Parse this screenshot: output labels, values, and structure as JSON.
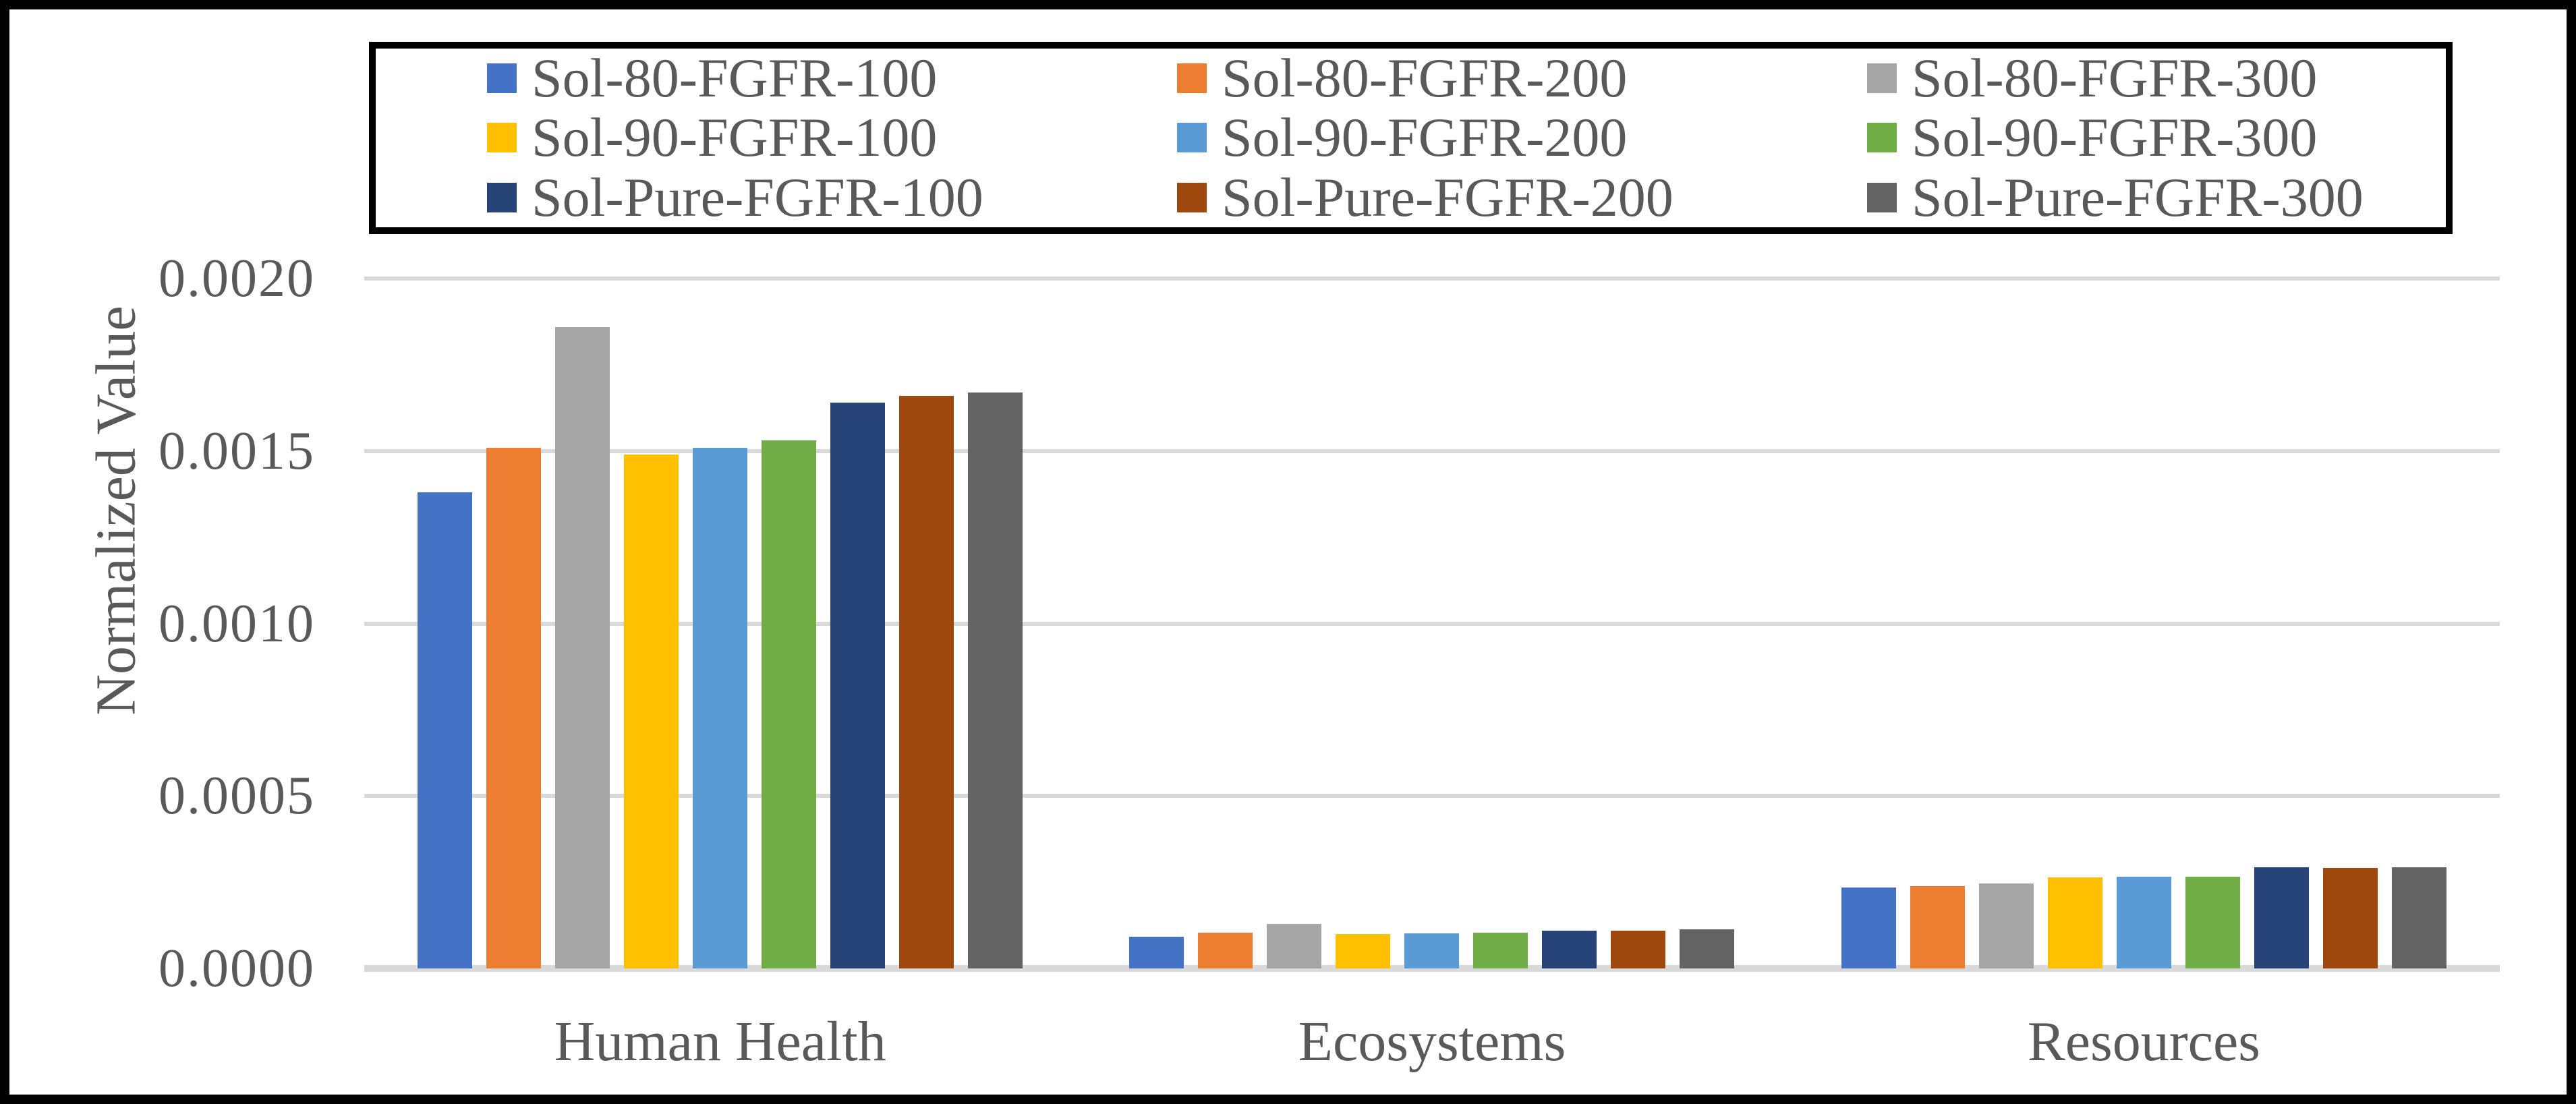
{
  "chart_data": {
    "type": "bar",
    "title": "",
    "ylabel": "Normalized Value",
    "xlabel": "",
    "categories": [
      "Human Health",
      "Ecosystems",
      "Resources"
    ],
    "series": [
      {
        "name": "Sol-80-FGFR-100",
        "color": "#4472C4",
        "values": [
          0.00138,
          9.2e-05,
          0.000235
        ]
      },
      {
        "name": "Sol-80-FGFR-200",
        "color": "#ED7D31",
        "values": [
          0.00151,
          0.000103,
          0.000238
        ]
      },
      {
        "name": "Sol-80-FGFR-300",
        "color": "#A5A5A5",
        "values": [
          0.00186,
          0.00013,
          0.000247
        ]
      },
      {
        "name": "Sol-90-FGFR-100",
        "color": "#FFC000",
        "values": [
          0.00149,
          9.9e-05,
          0.000263
        ]
      },
      {
        "name": "Sol-90-FGFR-200",
        "color": "#5B9BD5",
        "values": [
          0.00151,
          0.000102,
          0.000266
        ]
      },
      {
        "name": "Sol-90-FGFR-300",
        "color": "#70AD47",
        "values": [
          0.00153,
          0.000104,
          0.000265
        ]
      },
      {
        "name": "Sol-Pure-FGFR-100",
        "color": "#264478",
        "values": [
          0.00164,
          0.00011,
          0.000293
        ]
      },
      {
        "name": "Sol-Pure-FGFR-200",
        "color": "#9E480E",
        "values": [
          0.00166,
          0.00011,
          0.000291
        ]
      },
      {
        "name": "Sol-Pure-FGFR-300",
        "color": "#636363",
        "values": [
          0.00167,
          0.000113,
          0.000294
        ]
      }
    ],
    "ylim": [
      0,
      0.002
    ],
    "yticks": [
      {
        "label": "0.0000",
        "value": 0
      },
      {
        "label": "0.0005",
        "value": 0.0005
      },
      {
        "label": "0.0010",
        "value": 0.001
      },
      {
        "label": "0.0015",
        "value": 0.0015
      },
      {
        "label": "0.0020",
        "value": 0.002
      }
    ],
    "grid": true,
    "legend_position": "top",
    "colors": {
      "gridline": "#d9d9d9",
      "text": "#595959",
      "legend_border": "#000000",
      "frame_border": "#000000",
      "background": "#ffffff"
    }
  }
}
